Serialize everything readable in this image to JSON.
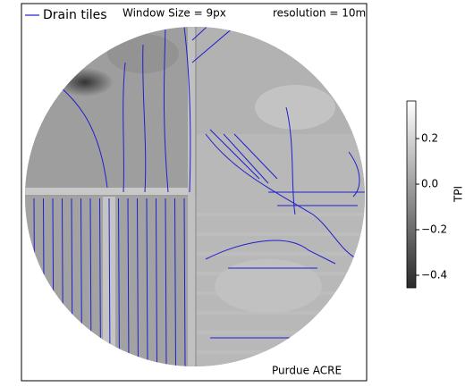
{
  "legend": {
    "label": "Drain tiles"
  },
  "annotations": {
    "window": "Window Size = 9px",
    "resolution": "resolution = 10m",
    "site": "Purdue ACRE"
  },
  "colorbar": {
    "label": "TPI",
    "lim": [
      -0.455,
      0.365
    ],
    "ticks": [
      {
        "value": -0.4,
        "label": "−0.4"
      },
      {
        "value": -0.2,
        "label": "−0.2"
      },
      {
        "value": 0,
        "label": "0.0"
      },
      0.2
    ]
  }
}
